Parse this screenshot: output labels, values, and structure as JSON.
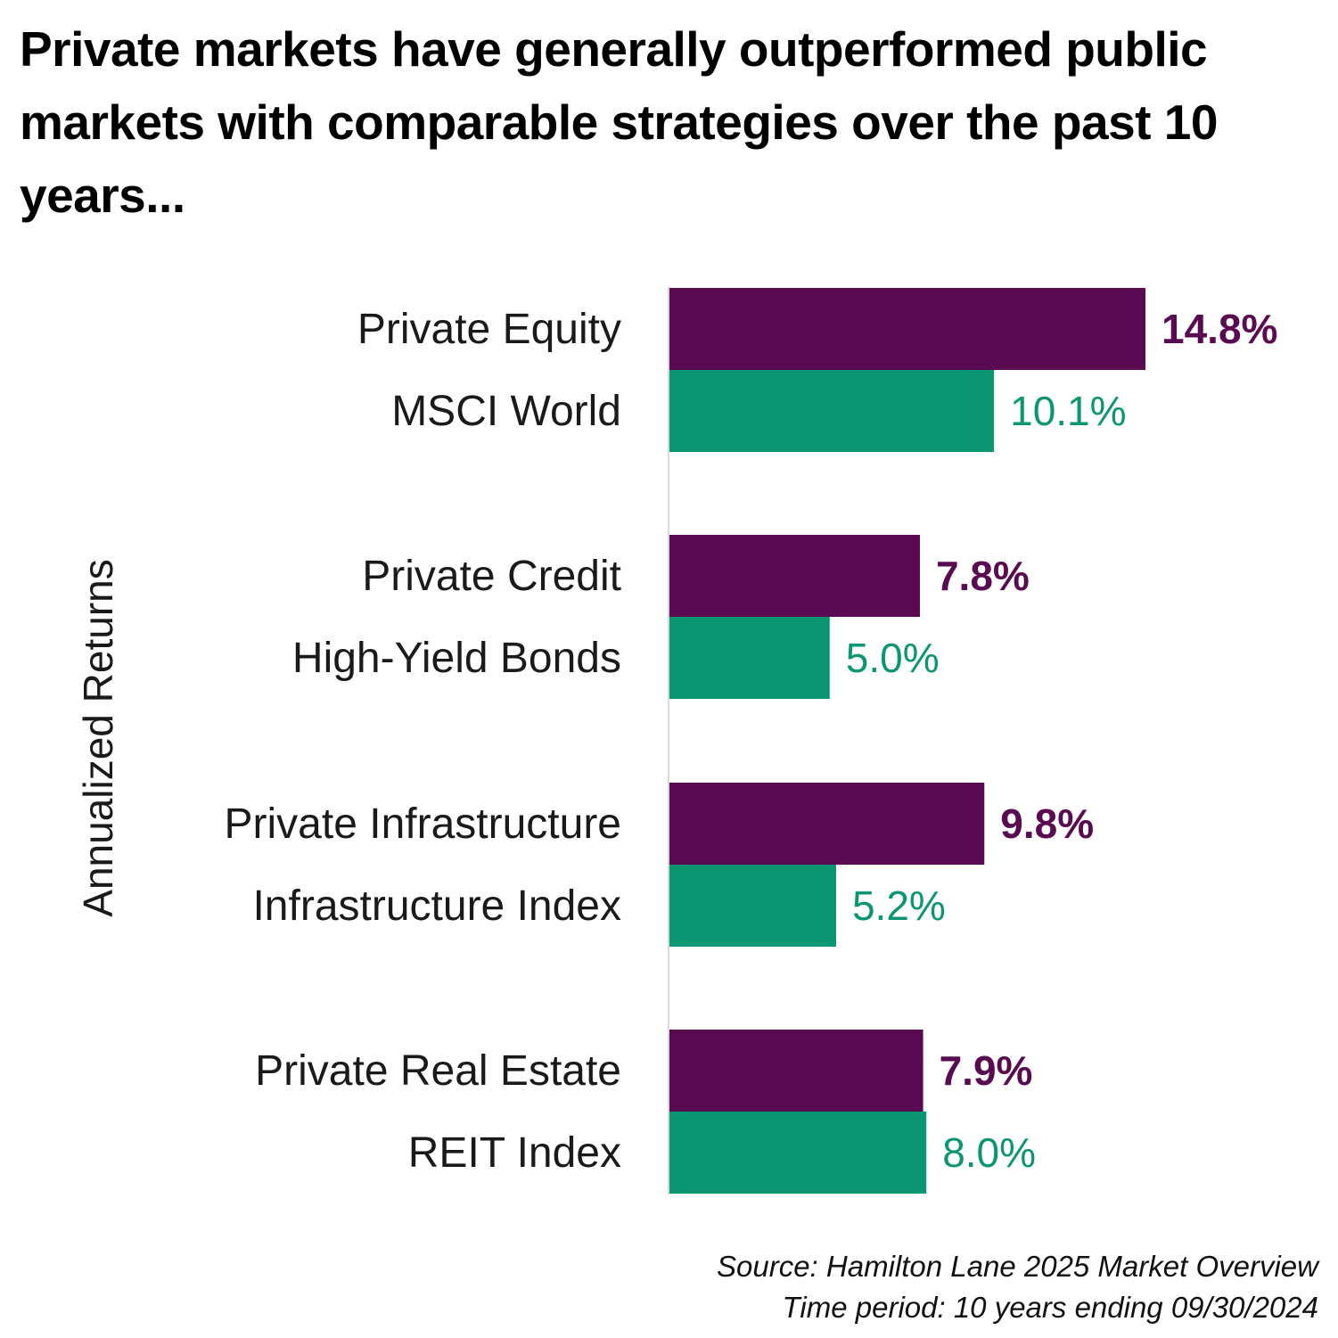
{
  "title": "Private markets have generally outperformed public markets with comparable strategies over the past 10 years...",
  "source": {
    "line1": "Source: Hamilton Lane 2025 Market Overview",
    "line2": "Time period: 10 years ending 09/30/2024"
  },
  "chart_data": {
    "type": "bar",
    "orientation": "horizontal",
    "title": "Private markets have generally outperformed public markets with comparable strategies over the past 10 years...",
    "xlabel": "",
    "ylabel": "Annualized Returns",
    "unit": "%",
    "xlim": [
      0,
      20
    ],
    "grid": false,
    "legend": "none",
    "groups": [
      {
        "private": {
          "label": "Private Equity",
          "value": 14.8,
          "display": "14.8%"
        },
        "public": {
          "label": "MSCI World",
          "value": 10.1,
          "display": "10.1%"
        }
      },
      {
        "private": {
          "label": "Private Credit",
          "value": 7.8,
          "display": "7.8%"
        },
        "public": {
          "label": "High-Yield Bonds",
          "value": 5.0,
          "display": "5.0%"
        }
      },
      {
        "private": {
          "label": "Private Infrastructure",
          "value": 9.8,
          "display": "9.8%"
        },
        "public": {
          "label": "Infrastructure Index",
          "value": 5.2,
          "display": "5.2%"
        }
      },
      {
        "private": {
          "label": "Private Real Estate",
          "value": 7.9,
          "display": "7.9%"
        },
        "public": {
          "label": "REIT Index",
          "value": 8.0,
          "display": "8.0%"
        }
      }
    ],
    "series_colors": {
      "private": "#5a0a50",
      "public": "#0b9673"
    },
    "axis_color": "#d9d9d9"
  }
}
